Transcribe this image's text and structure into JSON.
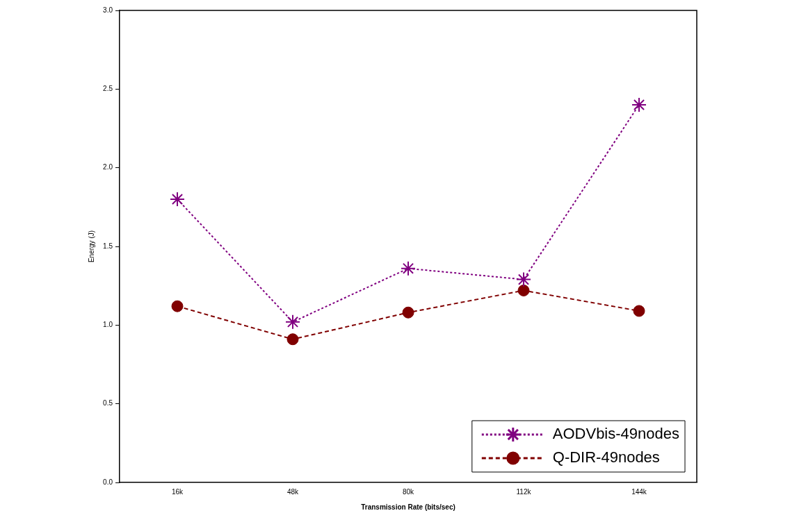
{
  "chart_data": {
    "type": "line",
    "xlabel": "Transmission Rate (bits/sec)",
    "ylabel": "Energy (J)",
    "categories": [
      "16k",
      "48k",
      "80k",
      "112k",
      "144k"
    ],
    "series": [
      {
        "name": "AODVbis-49nodes",
        "color": "#800080",
        "values": [
          1.8,
          1.02,
          1.36,
          1.29,
          2.4
        ],
        "marker": "cross",
        "line_style": "dotted"
      },
      {
        "name": "Q-DIR-49nodes",
        "color": "#800000",
        "values": [
          1.12,
          0.91,
          1.08,
          1.22,
          1.09
        ],
        "marker": "circle",
        "line_style": "dashed"
      }
    ],
    "ylim": [
      0,
      3
    ],
    "yticks": [
      {
        "value": 0,
        "label": "0.0"
      },
      {
        "value": 0.5,
        "label": "0.5"
      },
      {
        "value": 1,
        "label": "1.0"
      },
      {
        "value": 1.5,
        "label": "1.5"
      },
      {
        "value": 2,
        "label": "2.0"
      },
      {
        "value": 2.5,
        "label": "2.5"
      },
      {
        "value": 3,
        "label": "3.0"
      }
    ],
    "grid": false,
    "legend": "bottom right"
  }
}
